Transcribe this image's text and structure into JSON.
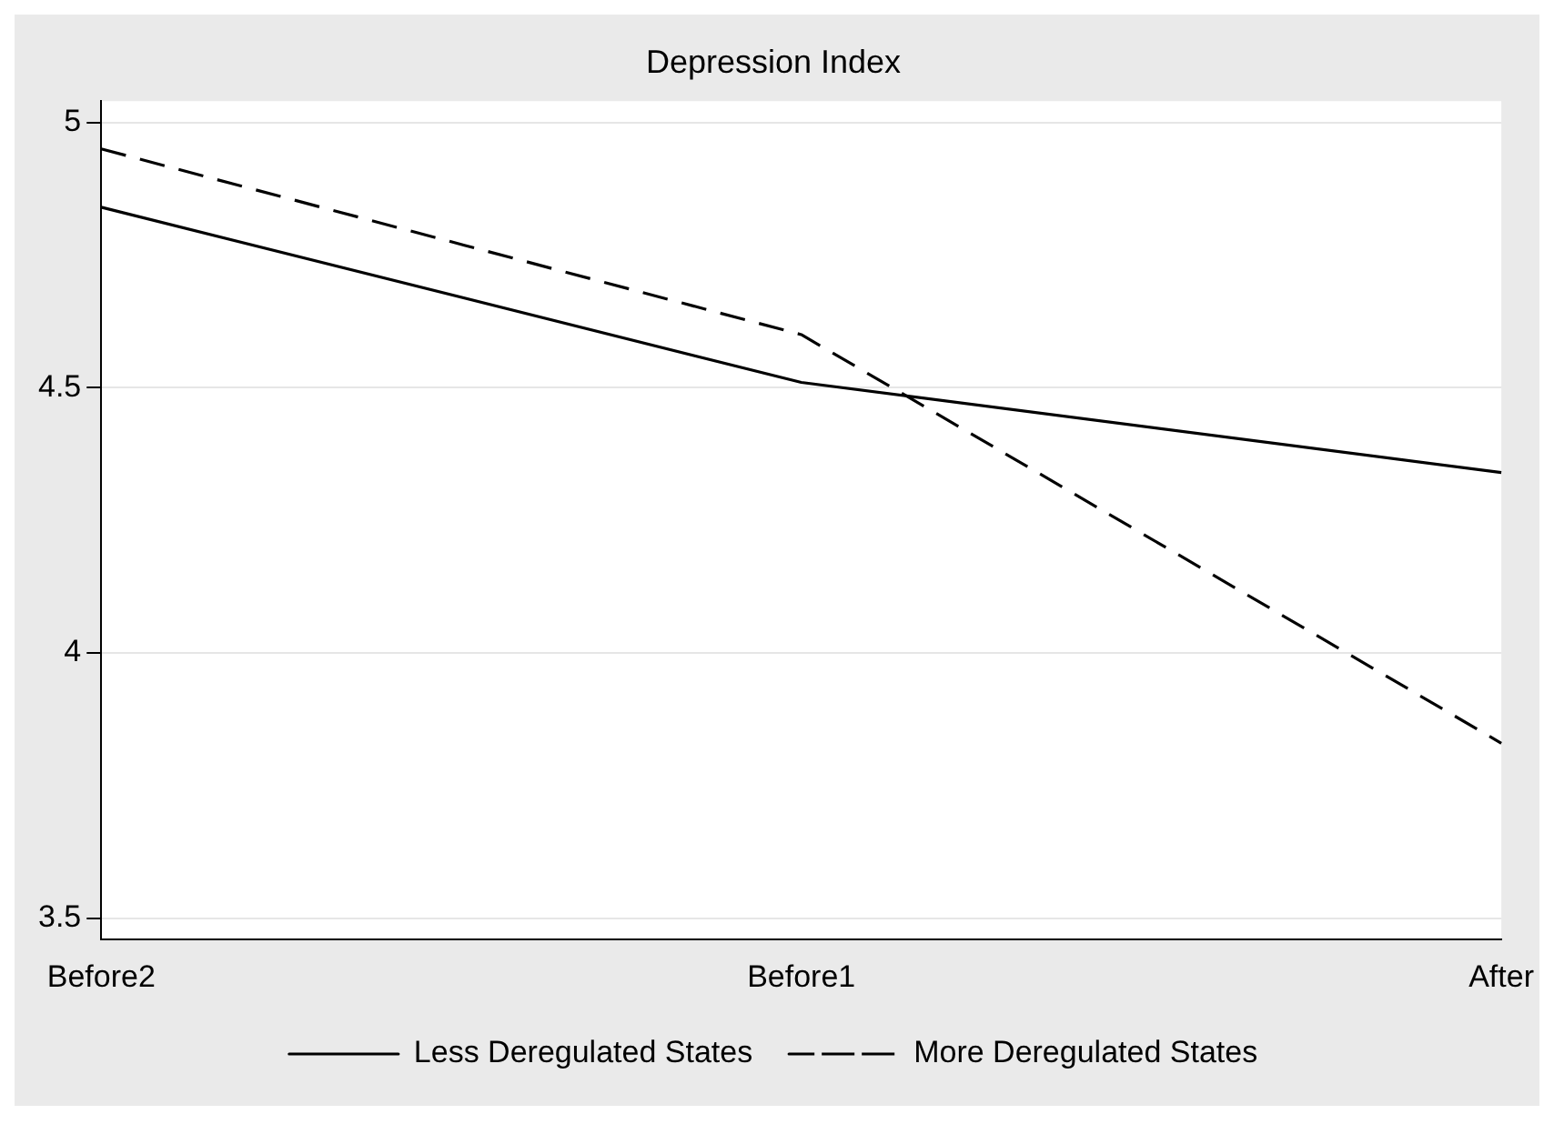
{
  "chart_data": {
    "type": "line",
    "title": "Depression Index",
    "categories": [
      "Before2",
      "Before1",
      "After"
    ],
    "series": [
      {
        "name": "Less Deregulated States",
        "color": "#000000",
        "values": [
          4.84,
          4.51,
          4.34
        ],
        "line_style": "solid"
      },
      {
        "name": "More Deregulated States",
        "color": "#000000",
        "values": [
          4.95,
          4.6,
          3.83
        ],
        "line_style": "dashed"
      }
    ],
    "ylim": [
      3.46,
      5.04
    ],
    "yticks": [
      3.5,
      4,
      4.5,
      5
    ],
    "grid": "y",
    "legend": "bottom",
    "marker": "none"
  }
}
